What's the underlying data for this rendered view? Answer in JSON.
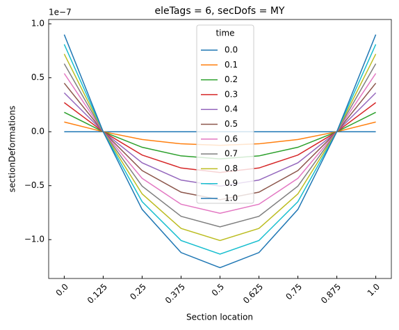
{
  "chart_data": {
    "type": "line",
    "title": "eleTags = 6, secDofs = MY",
    "x_label": "Section location",
    "y_label": "sectionDeformations",
    "y_offset_label": "1e−7",
    "legend_title": "time",
    "legend_position": "upper center",
    "x": [
      0,
      0.125,
      0.25,
      0.375,
      0.5,
      0.625,
      0.75,
      0.875,
      1
    ],
    "xlim": [
      -0.05,
      1.05
    ],
    "xticks": [
      {
        "value": 0,
        "label": "0.0"
      },
      0.125,
      0.25,
      0.375,
      0.5,
      0.625,
      0.75,
      0.875,
      {
        "value": 1,
        "label": "1.0"
      }
    ],
    "ylim": [
      -1.36,
      1.04
    ],
    "yticks": [
      {
        "value": -1,
        "label": "−1.0"
      },
      {
        "value": -0.5,
        "label": "−0.5"
      },
      {
        "value": 0,
        "label": "0.0"
      },
      {
        "value": 0.5,
        "label": "0.5"
      },
      {
        "value": 1,
        "label": "1.0"
      }
    ],
    "series": [
      {
        "name": "0.0",
        "color": "#1f77b4",
        "values": [
          0,
          0,
          0,
          0,
          0,
          0,
          0,
          0,
          0
        ]
      },
      {
        "name": "0.1",
        "color": "#ff7f0e",
        "values": [
          0.09,
          0,
          -0.072,
          -0.112,
          -0.126,
          -0.112,
          -0.072,
          0,
          0.09
        ]
      },
      {
        "name": "0.2",
        "color": "#2ca02c",
        "values": [
          0.18,
          0,
          -0.144,
          -0.224,
          -0.252,
          -0.224,
          -0.144,
          0,
          0.18
        ]
      },
      {
        "name": "0.3",
        "color": "#d62728",
        "values": [
          0.27,
          0,
          -0.216,
          -0.336,
          -0.378,
          -0.336,
          -0.216,
          0,
          0.27
        ]
      },
      {
        "name": "0.4",
        "color": "#9467bd",
        "values": [
          0.36,
          0,
          -0.288,
          -0.448,
          -0.504,
          -0.448,
          -0.288,
          0,
          0.36
        ]
      },
      {
        "name": "0.5",
        "color": "#8c564b",
        "values": [
          0.45,
          0,
          -0.36,
          -0.56,
          -0.63,
          -0.56,
          -0.36,
          0,
          0.45
        ]
      },
      {
        "name": "0.6",
        "color": "#e377c2",
        "values": [
          0.54,
          0,
          -0.432,
          -0.672,
          -0.756,
          -0.672,
          -0.432,
          0,
          0.54
        ]
      },
      {
        "name": "0.7",
        "color": "#7f7f7f",
        "values": [
          0.63,
          0,
          -0.504,
          -0.784,
          -0.882,
          -0.784,
          -0.504,
          0,
          0.63
        ]
      },
      {
        "name": "0.8",
        "color": "#bcbd22",
        "values": [
          0.72,
          0,
          -0.576,
          -0.896,
          -1.008,
          -0.896,
          -0.576,
          0,
          0.72
        ]
      },
      {
        "name": "0.9",
        "color": "#17becf",
        "values": [
          0.81,
          0,
          -0.648,
          -1.008,
          -1.134,
          -1.008,
          -0.648,
          0,
          0.81
        ]
      },
      {
        "name": "1.0",
        "color": "#1f77b4",
        "values": [
          0.9,
          0,
          -0.72,
          -1.12,
          -1.26,
          -1.12,
          -0.72,
          0,
          0.9
        ]
      }
    ]
  }
}
